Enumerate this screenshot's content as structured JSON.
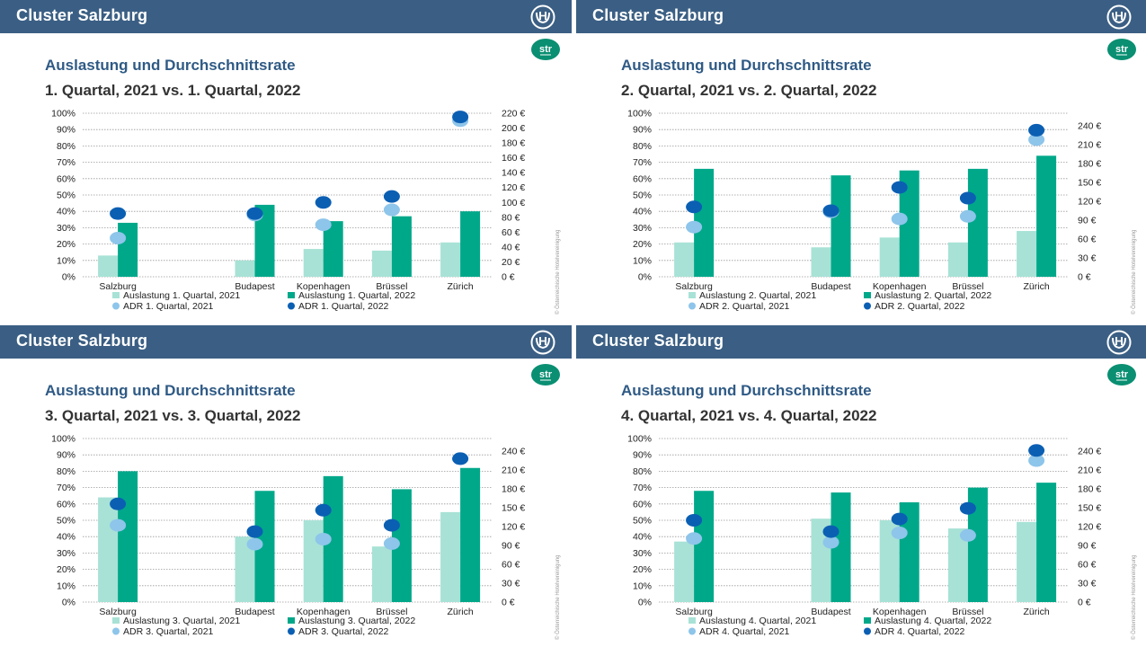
{
  "copyright": "© Österreichische Hotelvereinigung",
  "str_label": "str",
  "panels": [
    {
      "header_title": "Cluster Salzburg",
      "subtitle": "Auslastung und Durchschnittsrate",
      "quarter_title": "1. Quartal, 2021 vs. 1. Quartal, 2022",
      "chart_data": {
        "type": "bar",
        "categories": [
          "Salzburg",
          "Budapest",
          "Kopenhagen",
          "Brüssel",
          "Zürich"
        ],
        "category_slots": [
          0,
          2,
          3,
          4,
          5
        ],
        "series": [
          {
            "name": "Auslastung 1. Quartal, 2021",
            "axis": "left",
            "kind": "bar",
            "values": [
              13,
              10,
              17,
              16,
              21
            ]
          },
          {
            "name": "Auslastung 1. Quartal, 2022",
            "axis": "left",
            "kind": "bar",
            "values": [
              33,
              44,
              34,
              37,
              40
            ]
          },
          {
            "name": "ADR 1. Quartal, 2021",
            "axis": "right",
            "kind": "dot",
            "values": [
              52,
              83,
              70,
              90,
              210
            ]
          },
          {
            "name": "ADR 1. Quartal, 2022",
            "axis": "right",
            "kind": "dot",
            "values": [
              85,
              85,
              100,
              108,
              215
            ]
          }
        ],
        "yleft_ticks": [
          "0%",
          "10%",
          "20%",
          "30%",
          "40%",
          "50%",
          "60%",
          "70%",
          "80%",
          "90%",
          "100%"
        ],
        "yleft_range": [
          0,
          100
        ],
        "yright_ticks": [
          "0 €",
          "20 €",
          "40 €",
          "60 €",
          "80 €",
          "100 €",
          "120 €",
          "140 €",
          "160 €",
          "180 €",
          "200 €",
          "220 €"
        ],
        "yright_range": [
          0,
          220
        ],
        "grid": true,
        "legend_position": "bottom"
      }
    },
    {
      "header_title": "Cluster Salzburg",
      "subtitle": "Auslastung und Durchschnittsrate",
      "quarter_title": "2. Quartal, 2021 vs. 2. Quartal, 2022",
      "chart_data": {
        "type": "bar",
        "categories": [
          "Salzburg",
          "Budapest",
          "Kopenhagen",
          "Brüssel",
          "Zürich"
        ],
        "category_slots": [
          0,
          2,
          3,
          4,
          5
        ],
        "series": [
          {
            "name": "Auslastung 2. Quartal, 2021",
            "axis": "left",
            "kind": "bar",
            "values": [
              21,
              18,
              24,
              21,
              28
            ]
          },
          {
            "name": "Auslastung 2. Quartal, 2022",
            "axis": "left",
            "kind": "bar",
            "values": [
              66,
              62,
              65,
              66,
              74
            ]
          },
          {
            "name": "ADR 2. Quartal, 2021",
            "axis": "right",
            "kind": "dot",
            "values": [
              79,
              103,
              92,
              96,
              218
            ]
          },
          {
            "name": "ADR 2. Quartal, 2022",
            "axis": "right",
            "kind": "dot",
            "values": [
              111,
              105,
              142,
              125,
              233
            ]
          }
        ],
        "yleft_ticks": [
          "0%",
          "10%",
          "20%",
          "30%",
          "40%",
          "50%",
          "60%",
          "70%",
          "80%",
          "90%",
          "100%"
        ],
        "yleft_range": [
          0,
          100
        ],
        "yright_ticks": [
          "0 €",
          "30 €",
          "60 €",
          "90 €",
          "120 €",
          "150 €",
          "180 €",
          "210 €",
          "240 €"
        ],
        "yright_range": [
          0,
          260
        ],
        "grid": true,
        "legend_position": "bottom"
      }
    },
    {
      "header_title": "Cluster Salzburg",
      "subtitle": "Auslastung und Durchschnittsrate",
      "quarter_title": "3. Quartal, 2021 vs. 3. Quartal, 2022",
      "chart_data": {
        "type": "bar",
        "categories": [
          "Salzburg",
          "Budapest",
          "Kopenhagen",
          "Brüssel",
          "Zürich"
        ],
        "category_slots": [
          0,
          2,
          3,
          4,
          5
        ],
        "series": [
          {
            "name": "Auslastung 3. Quartal, 2021",
            "axis": "left",
            "kind": "bar",
            "values": [
              64,
              40,
              50,
              34,
              55
            ]
          },
          {
            "name": "Auslastung 3. Quartal, 2022",
            "axis": "left",
            "kind": "bar",
            "values": [
              80,
              68,
              77,
              69,
              82
            ]
          },
          {
            "name": "ADR 3. Quartal, 2021",
            "axis": "right",
            "kind": "dot",
            "values": [
              122,
              92,
              100,
              93,
              228
            ]
          },
          {
            "name": "ADR 3. Quartal, 2022",
            "axis": "right",
            "kind": "dot",
            "values": [
              156,
              112,
              146,
              122,
              228
            ]
          }
        ],
        "yleft_ticks": [
          "0%",
          "10%",
          "20%",
          "30%",
          "40%",
          "50%",
          "60%",
          "70%",
          "80%",
          "90%",
          "100%"
        ],
        "yleft_range": [
          0,
          100
        ],
        "yright_ticks": [
          "0 €",
          "30 €",
          "60 €",
          "90 €",
          "120 €",
          "150 €",
          "180 €",
          "210 €",
          "240 €"
        ],
        "yright_range": [
          0,
          260
        ],
        "grid": true,
        "legend_position": "bottom"
      }
    },
    {
      "header_title": "Cluster Salzburg",
      "subtitle": "Auslastung und Durchschnittsrate",
      "quarter_title": "4. Quartal, 2021 vs. 4. Quartal, 2022",
      "chart_data": {
        "type": "bar",
        "categories": [
          "Salzburg",
          "Budapest",
          "Kopenhagen",
          "Brüssel",
          "Zürich"
        ],
        "category_slots": [
          0,
          2,
          3,
          4,
          5
        ],
        "series": [
          {
            "name": "Auslastung 4. Quartal, 2021",
            "axis": "left",
            "kind": "bar",
            "values": [
              37,
              51,
              50,
              45,
              49
            ]
          },
          {
            "name": "Auslastung 4. Quartal, 2022",
            "axis": "left",
            "kind": "bar",
            "values": [
              68,
              67,
              61,
              70,
              73
            ]
          },
          {
            "name": "ADR 4. Quartal, 2021",
            "axis": "right",
            "kind": "dot",
            "values": [
              101,
              95,
              110,
              106,
              225
            ]
          },
          {
            "name": "ADR 4. Quartal, 2022",
            "axis": "right",
            "kind": "dot",
            "values": [
              130,
              112,
              132,
              149,
              241
            ]
          }
        ],
        "yleft_ticks": [
          "0%",
          "10%",
          "20%",
          "30%",
          "40%",
          "50%",
          "60%",
          "70%",
          "80%",
          "90%",
          "100%"
        ],
        "yleft_range": [
          0,
          100
        ],
        "yright_ticks": [
          "0 €",
          "30 €",
          "60 €",
          "90 €",
          "120 €",
          "150 €",
          "180 €",
          "210 €",
          "240 €"
        ],
        "yright_range": [
          0,
          260
        ],
        "grid": true,
        "legend_position": "bottom"
      }
    }
  ],
  "colors": {
    "header_bg": "#3b5f84",
    "bar_2021": "#a8e2d6",
    "bar_2022": "#00a88a",
    "dot_2021": "#8ec5ea",
    "dot_2022": "#0b5fb3",
    "str_logo": "#0a8f72",
    "grid": "#999999",
    "tick_text": "#222222"
  }
}
